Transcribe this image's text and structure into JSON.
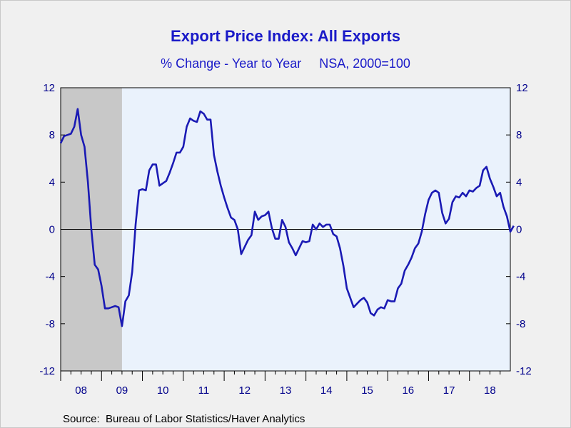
{
  "chart_data": {
    "type": "line",
    "title": "Export Price Index: All Exports",
    "subtitle": "% Change - Year to Year     NSA, 2000=100",
    "source": "Source:  Bureau of Labor Statistics/Haver Analytics",
    "series": [
      {
        "values": [
          7.3,
          7.9,
          8.0,
          8.1,
          8.7,
          10.2,
          8.0,
          7.0,
          4.0,
          0.0,
          -3.0,
          -3.4,
          -4.8,
          -6.7,
          -6.7,
          -6.6,
          -6.5,
          -6.6,
          -8.2,
          -6.1,
          -5.6,
          -3.6,
          0.4,
          3.3,
          3.4,
          3.3,
          5.0,
          5.5,
          5.5,
          3.7,
          3.9,
          4.1,
          4.8,
          5.6,
          6.5,
          6.5,
          7.0,
          8.7,
          9.4,
          9.2,
          9.1,
          10.0,
          9.8,
          9.3,
          9.3,
          6.3,
          4.9,
          3.7,
          2.7,
          1.8,
          1.0,
          0.8,
          0.0,
          -2.1,
          -1.5,
          -0.9,
          -0.5,
          1.5,
          0.8,
          1.1,
          1.2,
          1.5,
          0.1,
          -0.8,
          -0.8,
          0.8,
          0.2,
          -1.1,
          -1.6,
          -2.2,
          -1.6,
          -1.0,
          -1.1,
          -1.0,
          0.4,
          0.0,
          0.5,
          0.2,
          0.4,
          0.4,
          -0.4,
          -0.6,
          -1.6,
          -3.1,
          -5.0,
          -5.8,
          -6.6,
          -6.3,
          -6.0,
          -5.8,
          -6.2,
          -7.1,
          -7.3,
          -6.8,
          -6.6,
          -6.7,
          -6.0,
          -6.1,
          -6.1,
          -5.0,
          -4.6,
          -3.5,
          -3.0,
          -2.4,
          -1.6,
          -1.2,
          -0.2,
          1.3,
          2.5,
          3.1,
          3.3,
          3.1,
          1.4,
          0.5,
          0.9,
          2.3,
          2.8,
          2.7,
          3.1,
          2.8,
          3.3,
          3.2,
          3.5,
          3.7,
          5.0,
          5.3,
          4.3,
          3.6,
          2.8,
          3.1,
          1.9,
          1.1,
          -0.2,
          0.3
        ]
      }
    ],
    "x_labels": [
      "08",
      "09",
      "10",
      "11",
      "12",
      "13",
      "14",
      "15",
      "16",
      "17",
      "18"
    ],
    "y_ticks": [
      12,
      8,
      4,
      0,
      -4,
      -8,
      -12
    ],
    "ylim": [
      -12,
      12
    ],
    "recession_shade": {
      "from": "2008-01",
      "to": "2009-06",
      "color": "#c8c8c8"
    },
    "plot_bg": "#eaf2fc",
    "line_color": "#1a1ab4",
    "grid": false,
    "zero_line": true
  }
}
